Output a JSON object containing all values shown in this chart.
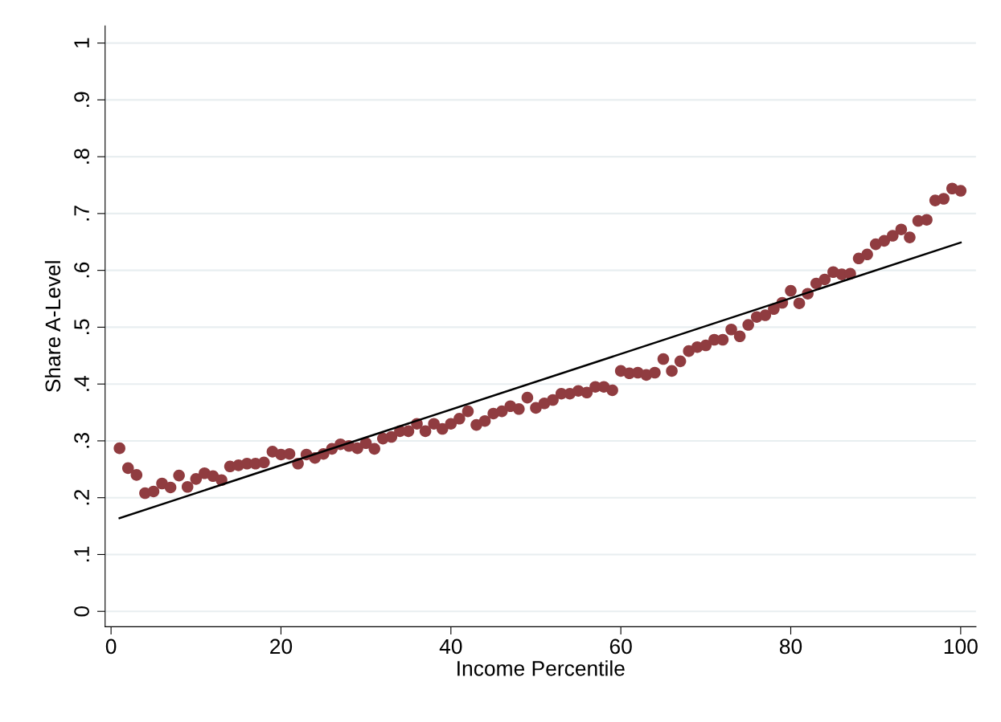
{
  "chart_data": {
    "type": "scatter",
    "xlabel": "Income Percentile",
    "ylabel": "Share A-Level",
    "xlim": [
      -0.7,
      101.8
    ],
    "xticks": [
      0,
      20,
      40,
      60,
      80,
      100
    ],
    "ylim": [
      -0.027,
      1.03
    ],
    "yticks": [
      {
        "value": 0,
        "label": "0"
      },
      {
        "value": 0.1,
        "label": ".1"
      },
      {
        "value": 0.2,
        "label": ".2"
      },
      {
        "value": 0.3,
        "label": ".3"
      },
      {
        "value": 0.4,
        "label": ".4"
      },
      {
        "value": 0.5,
        "label": ".5"
      },
      {
        "value": 0.6,
        "label": ".6"
      },
      {
        "value": 0.7,
        "label": ".7"
      },
      {
        "value": 0.8,
        "label": ".8"
      },
      {
        "value": 0.9,
        "label": ".9"
      },
      {
        "value": 1,
        "label": "1"
      }
    ],
    "grid": "y",
    "series": [
      {
        "marker": "circle",
        "color": "#903c40",
        "x": [
          1,
          2,
          3,
          4,
          5,
          6,
          7,
          8,
          9,
          10,
          11,
          12,
          13,
          14,
          15,
          16,
          17,
          18,
          19,
          20,
          21,
          22,
          23,
          24,
          25,
          26,
          27,
          28,
          29,
          30,
          31,
          32,
          33,
          34,
          35,
          36,
          37,
          38,
          39,
          40,
          41,
          42,
          43,
          44,
          45,
          46,
          47,
          48,
          49,
          50,
          51,
          52,
          53,
          54,
          55,
          56,
          57,
          58,
          59,
          60,
          61,
          62,
          63,
          64,
          65,
          66,
          67,
          68,
          69,
          70,
          71,
          72,
          73,
          74,
          75,
          76,
          77,
          78,
          79,
          80,
          81,
          82,
          83,
          84,
          85,
          86,
          87,
          88,
          89,
          90,
          91,
          92,
          93,
          94,
          95,
          96,
          97,
          98,
          99,
          100
        ],
        "values": [
          0.287,
          0.252,
          0.24,
          0.208,
          0.211,
          0.225,
          0.218,
          0.239,
          0.219,
          0.233,
          0.243,
          0.238,
          0.231,
          0.255,
          0.257,
          0.26,
          0.26,
          0.262,
          0.281,
          0.276,
          0.277,
          0.26,
          0.276,
          0.27,
          0.277,
          0.286,
          0.294,
          0.291,
          0.287,
          0.296,
          0.286,
          0.304,
          0.307,
          0.317,
          0.317,
          0.33,
          0.317,
          0.33,
          0.321,
          0.33,
          0.339,
          0.352,
          0.328,
          0.335,
          0.348,
          0.352,
          0.361,
          0.356,
          0.376,
          0.358,
          0.366,
          0.372,
          0.383,
          0.383,
          0.388,
          0.385,
          0.395,
          0.395,
          0.389,
          0.423,
          0.419,
          0.42,
          0.416,
          0.42,
          0.444,
          0.423,
          0.44,
          0.458,
          0.465,
          0.468,
          0.478,
          0.478,
          0.496,
          0.484,
          0.504,
          0.518,
          0.521,
          0.532,
          0.543,
          0.564,
          0.542,
          0.559,
          0.577,
          0.584,
          0.597,
          0.593,
          0.594,
          0.621,
          0.628,
          0.646,
          0.652,
          0.661,
          0.672,
          0.658,
          0.687,
          0.689,
          0.723,
          0.726,
          0.744,
          0.74
        ]
      },
      {
        "type": "line",
        "marker": "none",
        "color": "#000000",
        "x": [
          1,
          100
        ],
        "values": [
          0.164,
          0.649
        ]
      }
    ]
  }
}
